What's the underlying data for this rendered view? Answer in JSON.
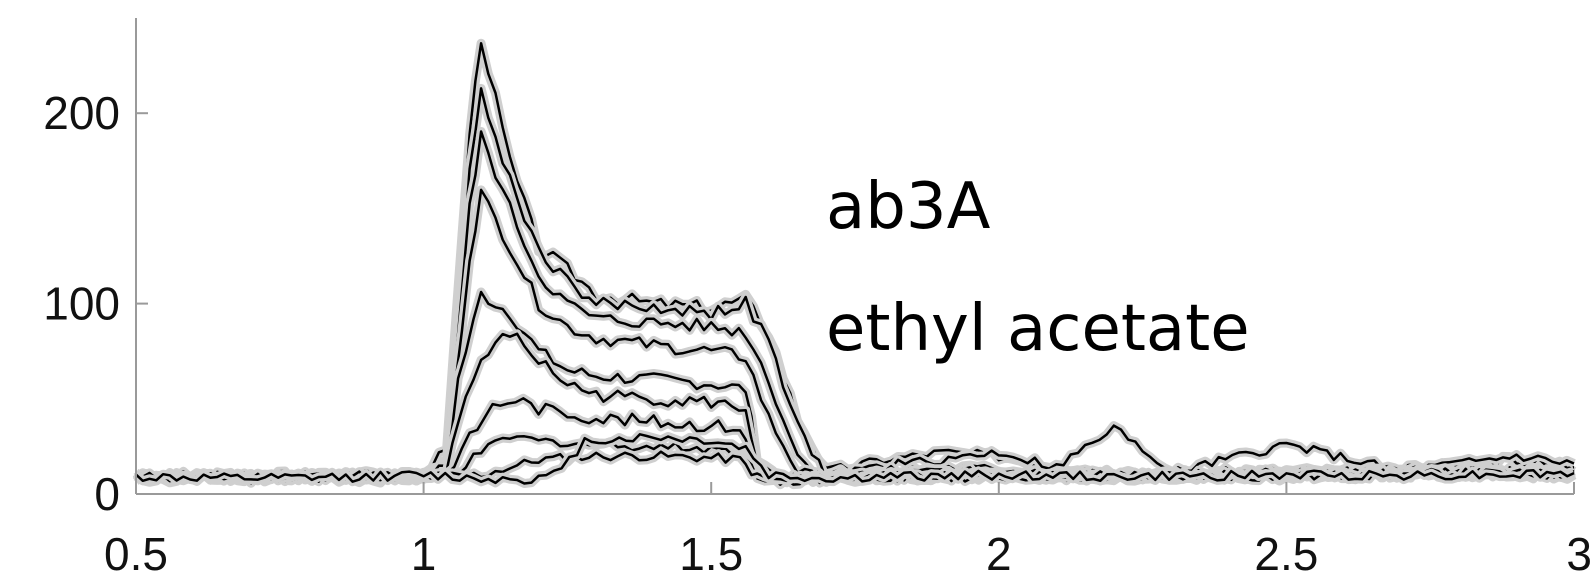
{
  "chart_data": {
    "type": "line",
    "title": "",
    "xlabel": "",
    "ylabel": "",
    "xlim": [
      0.5,
      3
    ],
    "ylim": [
      0,
      250
    ],
    "xticks": [
      0.5,
      1,
      1.5,
      2,
      2.5,
      3
    ],
    "xtick_labels": [
      "0.5",
      "1",
      "1.5",
      "2",
      "2.5",
      "3"
    ],
    "yticks": [
      0,
      100,
      200
    ],
    "ytick_labels": [
      "0",
      "100",
      "200"
    ],
    "grid": false,
    "legend": "none",
    "annotations": [
      "ab3A",
      "ethyl acetate"
    ],
    "series": [
      {
        "x": [
          0.5,
          0.7,
          0.9,
          1.0,
          1.04,
          1.08,
          1.1,
          1.15,
          1.2,
          1.25,
          1.3,
          1.4,
          1.5,
          1.56,
          1.6,
          1.65,
          1.7,
          1.8,
          1.9,
          2.0,
          2.1,
          2.2,
          2.3,
          2.5,
          2.7,
          2.9,
          3.0
        ],
        "y": [
          9,
          9,
          9,
          10,
          25,
          190,
          240,
          175,
          130,
          118,
          105,
          100,
          98,
          102,
          85,
          40,
          12,
          18,
          22,
          20,
          15,
          12,
          11,
          10,
          11,
          12,
          12
        ]
      },
      {
        "x": [
          0.5,
          0.7,
          0.9,
          1.0,
          1.04,
          1.08,
          1.1,
          1.15,
          1.2,
          1.25,
          1.3,
          1.4,
          1.5,
          1.56,
          1.6,
          1.65,
          1.7,
          1.8,
          1.9,
          2.0,
          2.1,
          2.2,
          2.3,
          2.5,
          2.7,
          2.9,
          3.0
        ],
        "y": [
          9,
          8,
          10,
          9,
          20,
          170,
          210,
          165,
          128,
          112,
          100,
          98,
          95,
          100,
          80,
          35,
          10,
          15,
          18,
          22,
          14,
          34,
          12,
          11,
          13,
          18,
          14
        ]
      },
      {
        "x": [
          0.5,
          0.7,
          0.9,
          1.0,
          1.04,
          1.08,
          1.1,
          1.15,
          1.2,
          1.25,
          1.3,
          1.4,
          1.5,
          1.56,
          1.6,
          1.65,
          1.7,
          1.8,
          1.9,
          2.0,
          2.1,
          2.2,
          2.3,
          2.5,
          2.7,
          2.9,
          3.0
        ],
        "y": [
          8,
          9,
          9,
          10,
          18,
          150,
          188,
          150,
          115,
          100,
          92,
          90,
          88,
          85,
          60,
          20,
          9,
          12,
          14,
          13,
          12,
          10,
          11,
          26,
          12,
          20,
          16
        ]
      },
      {
        "x": [
          0.5,
          0.7,
          0.9,
          1.0,
          1.04,
          1.08,
          1.1,
          1.15,
          1.2,
          1.25,
          1.3,
          1.4,
          1.5,
          1.56,
          1.6,
          1.65,
          1.7,
          1.8,
          1.9,
          2.0,
          2.1,
          2.2,
          2.3,
          2.5,
          2.7,
          2.9,
          3.0
        ],
        "y": [
          10,
          9,
          8,
          9,
          15,
          125,
          158,
          130,
          100,
          88,
          82,
          78,
          75,
          72,
          40,
          12,
          8,
          10,
          12,
          11,
          10,
          9,
          10,
          12,
          11,
          13,
          12
        ]
      },
      {
        "x": [
          0.5,
          0.7,
          0.9,
          1.0,
          1.04,
          1.06,
          1.1,
          1.15,
          1.2,
          1.25,
          1.3,
          1.4,
          1.5,
          1.56,
          1.58,
          1.62,
          1.7,
          1.8,
          2.0,
          2.2,
          2.5,
          2.8,
          3.0
        ],
        "y": [
          9,
          10,
          9,
          9,
          15,
          60,
          105,
          95,
          75,
          65,
          62,
          60,
          58,
          55,
          20,
          8,
          8,
          9,
          10,
          9,
          10,
          11,
          10
        ]
      },
      {
        "x": [
          0.5,
          0.7,
          0.9,
          1.0,
          1.04,
          1.06,
          1.1,
          1.15,
          1.2,
          1.25,
          1.3,
          1.4,
          1.5,
          1.56,
          1.58,
          1.62,
          1.7,
          1.8,
          2.0,
          2.2,
          2.5,
          2.8,
          3.0
        ],
        "y": [
          8,
          9,
          10,
          8,
          12,
          40,
          70,
          85,
          70,
          58,
          52,
          50,
          48,
          45,
          15,
          7,
          8,
          10,
          9,
          10,
          9,
          12,
          11
        ]
      },
      {
        "x": [
          0.5,
          0.7,
          0.9,
          1.0,
          1.04,
          1.08,
          1.12,
          1.16,
          1.2,
          1.3,
          1.4,
          1.5,
          1.55,
          1.58,
          1.62,
          1.7,
          1.8,
          2.0,
          2.2,
          2.5,
          2.8,
          3.0
        ],
        "y": [
          10,
          8,
          9,
          9,
          10,
          30,
          46,
          50,
          45,
          40,
          38,
          36,
          35,
          12,
          7,
          8,
          9,
          10,
          9,
          11,
          10,
          12
        ]
      },
      {
        "x": [
          0.5,
          0.7,
          0.9,
          1.0,
          1.06,
          1.1,
          1.15,
          1.2,
          1.3,
          1.4,
          1.5,
          1.55,
          1.58,
          1.62,
          1.7,
          1.8,
          2.0,
          2.2,
          2.5,
          2.8,
          3.0
        ],
        "y": [
          9,
          10,
          8,
          9,
          12,
          22,
          30,
          28,
          26,
          25,
          24,
          22,
          10,
          7,
          8,
          9,
          10,
          9,
          10,
          11,
          10
        ]
      },
      {
        "x": [
          0.5,
          0.7,
          0.9,
          1.0,
          1.1,
          1.15,
          1.2,
          1.3,
          1.4,
          1.5,
          1.55,
          1.58,
          1.62,
          1.7,
          1.8,
          2.0,
          2.2,
          2.5,
          2.8,
          3.0
        ],
        "y": [
          8,
          9,
          10,
          9,
          10,
          14,
          18,
          20,
          20,
          19,
          18,
          9,
          7,
          8,
          9,
          9,
          10,
          9,
          11,
          10
        ]
      },
      {
        "x": [
          0.5,
          0.7,
          0.9,
          1.0,
          1.1,
          1.2,
          1.24,
          1.28,
          1.4,
          1.5,
          1.56,
          1.6,
          1.7,
          1.8,
          2.0,
          2.2,
          2.5,
          2.8,
          3.0
        ],
        "y": [
          9,
          8,
          9,
          10,
          8,
          8,
          12,
          28,
          30,
          28,
          24,
          10,
          8,
          9,
          10,
          9,
          10,
          10,
          11
        ]
      }
    ]
  }
}
